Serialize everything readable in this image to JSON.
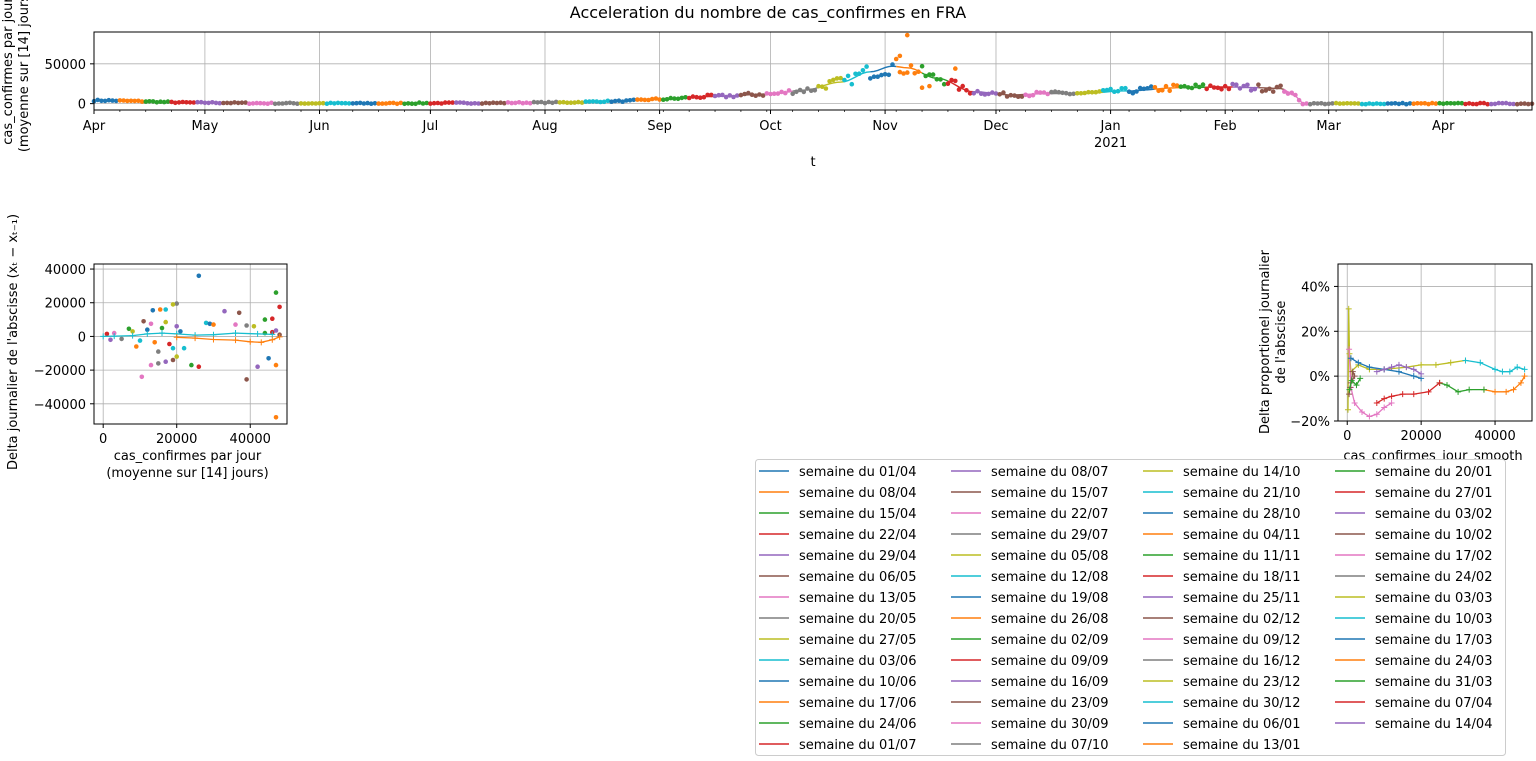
{
  "figure": {
    "title": "Acceleration du nombre de cas_confirmes en FRA"
  },
  "colors": [
    "#1f77b4",
    "#ff7f0e",
    "#2ca02c",
    "#d62728",
    "#9467bd",
    "#8c564b",
    "#e377c2",
    "#7f7f7f",
    "#bcbd22",
    "#17becf"
  ],
  "chart_data": [
    {
      "id": "timeline",
      "type": "scatter",
      "xlabel": "t",
      "ylabel_lines": [
        "cas_confirmes par jour",
        "(moyenne sur [14] jours)"
      ],
      "x_range": [
        "2020-04-01",
        "2021-04-25"
      ],
      "ylim": [
        -8000,
        90000
      ],
      "yticks": [
        0,
        50000
      ],
      "ytick_labels": [
        "0",
        "50000"
      ],
      "xtick_labels": [
        "Apr",
        "May",
        "Jun",
        "Jul",
        "Aug",
        "Sep",
        "Oct",
        "Nov",
        "Dec",
        "Jan",
        "Feb",
        "Mar",
        "Apr"
      ],
      "xtick_dates": [
        "2020-04-01",
        "2020-05-01",
        "2020-06-01",
        "2020-07-01",
        "2020-08-01",
        "2020-09-01",
        "2020-10-01",
        "2020-11-01",
        "2020-12-01",
        "2021-01-01",
        "2021-02-01",
        "2021-03-01",
        "2021-04-01"
      ],
      "year_label": "2021",
      "grid": true,
      "note": "daily values as points, 14-day moving average as line, coloured by week",
      "smooth_anchors": [
        [
          "2020-04-01",
          4000
        ],
        [
          "2020-05-01",
          1200
        ],
        [
          "2020-05-20",
          400
        ],
        [
          "2020-06-15",
          300
        ],
        [
          "2020-07-15",
          800
        ],
        [
          "2020-08-05",
          1500
        ],
        [
          "2020-08-20",
          3000
        ],
        [
          "2020-09-01",
          5500
        ],
        [
          "2020-09-15",
          9000
        ],
        [
          "2020-10-01",
          12000
        ],
        [
          "2020-10-10",
          17000
        ],
        [
          "2020-10-20",
          27000
        ],
        [
          "2020-10-28",
          40000
        ],
        [
          "2020-11-03",
          47000
        ],
        [
          "2020-11-07",
          45000
        ],
        [
          "2020-11-15",
          32000
        ],
        [
          "2020-11-25",
          15000
        ],
        [
          "2020-12-05",
          11000
        ],
        [
          "2020-12-15",
          12500
        ],
        [
          "2020-12-25",
          13000
        ],
        [
          "2021-01-05",
          16000
        ],
        [
          "2021-01-20",
          20000
        ],
        [
          "2021-02-01",
          21000
        ],
        [
          "2021-02-10",
          20000
        ],
        [
          "2021-02-16",
          19000
        ],
        [
          "2021-02-20",
          10000
        ],
        [
          "2021-02-22",
          0
        ],
        [
          "2021-04-25",
          0
        ]
      ],
      "outliers": [
        [
          "2020-11-07",
          86000
        ],
        [
          "2020-11-05",
          60000
        ],
        [
          "2020-11-11",
          20000
        ],
        [
          "2020-11-13",
          22000
        ],
        [
          "2020-11-20",
          44000
        ]
      ]
    },
    {
      "id": "phase-delta",
      "type": "scatter",
      "xlabel_lines": [
        "cas_confirmes par jour",
        "(moyenne sur [14] jours)"
      ],
      "ylabel": "Delta journalier de l'abscisse (x_t - x_{t-1})",
      "xlim": [
        -2500,
        50000
      ],
      "ylim": [
        -52000,
        43000
      ],
      "xticks": [
        0,
        20000,
        40000
      ],
      "xtick_labels": [
        "0",
        "20000",
        "40000"
      ],
      "yticks": [
        -40000,
        -20000,
        0,
        20000,
        40000
      ],
      "ytick_labels": [
        "−40000",
        "−20000",
        "0",
        "20000",
        "40000"
      ],
      "grid": true,
      "points": [
        [
          26000,
          36000
        ],
        [
          47000,
          -48000
        ],
        [
          47000,
          26000
        ],
        [
          48000,
          17500
        ],
        [
          42000,
          -18000
        ],
        [
          39000,
          -25500
        ],
        [
          10500,
          -24000
        ],
        [
          20000,
          19500
        ],
        [
          19000,
          19000
        ],
        [
          17000,
          16000
        ],
        [
          13500,
          15500
        ],
        [
          15500,
          16000
        ],
        [
          44000,
          10000
        ],
        [
          46000,
          10500
        ],
        [
          33000,
          15000
        ],
        [
          37000,
          14000
        ],
        [
          36000,
          7000
        ],
        [
          39000,
          6500
        ],
        [
          41000,
          6000
        ],
        [
          28000,
          8000
        ],
        [
          29000,
          7500
        ],
        [
          30000,
          7000
        ],
        [
          24000,
          -17000
        ],
        [
          26000,
          -18000
        ],
        [
          17000,
          -15000
        ],
        [
          19000,
          -14000
        ],
        [
          13000,
          -17000
        ],
        [
          15000,
          -16000
        ],
        [
          20000,
          -12000
        ],
        [
          22000,
          -7000
        ],
        [
          45000,
          -13000
        ],
        [
          47000,
          -17000
        ],
        [
          44000,
          2000
        ],
        [
          46000,
          2500
        ],
        [
          47000,
          3500
        ],
        [
          48000,
          1000
        ],
        [
          3000,
          2000
        ],
        [
          5000,
          -1500
        ],
        [
          8000,
          3000
        ],
        [
          10000,
          -2500
        ],
        [
          12000,
          4000
        ],
        [
          14000,
          -3500
        ],
        [
          16000,
          5000
        ],
        [
          18000,
          -4500
        ],
        [
          20000,
          6000
        ],
        [
          11000,
          9000
        ],
        [
          13000,
          7500
        ],
        [
          15000,
          -9000
        ],
        [
          17000,
          8500
        ],
        [
          19000,
          -7000
        ],
        [
          21000,
          3000
        ],
        [
          9000,
          -6000
        ],
        [
          7000,
          4500
        ],
        [
          1000,
          1500
        ],
        [
          2000,
          -2000
        ]
      ],
      "smooth_lines": [
        [
          [
            0,
            0
          ],
          [
            3000,
            200
          ],
          [
            8000,
            500
          ],
          [
            12000,
            1500
          ],
          [
            16000,
            2000
          ],
          [
            20000,
            1500
          ],
          [
            25000,
            800
          ],
          [
            30000,
            1000
          ],
          [
            36000,
            2000
          ],
          [
            42000,
            1500
          ],
          [
            46000,
            1200
          ]
        ],
        [
          [
            20000,
            -500
          ],
          [
            25000,
            -1000
          ],
          [
            30000,
            -1800
          ],
          [
            36000,
            -2200
          ],
          [
            40000,
            -3200
          ],
          [
            43000,
            -3500
          ],
          [
            46000,
            -2000
          ],
          [
            48000,
            -300
          ]
        ]
      ]
    },
    {
      "id": "phase-rel",
      "type": "scatter",
      "xlabel": "cas_confirmes_jour_smooth",
      "ylabel_lines": [
        "Delta proportionel journalier",
        "de l'abscisse"
      ],
      "xlim": [
        -2500,
        50000
      ],
      "ylim": [
        -0.2,
        0.5
      ],
      "xticks": [
        0,
        20000,
        40000
      ],
      "xtick_labels": [
        "0",
        "20000",
        "40000"
      ],
      "yticks": [
        -0.2,
        0,
        0.2,
        0.4
      ],
      "ytick_labels": [
        "−20%",
        "0%",
        "20%",
        "40%"
      ],
      "grid": true,
      "lines": [
        {
          "color": "#bcbd22",
          "pts": [
            [
              200,
              -0.15
            ],
            [
              400,
              0.3
            ],
            [
              600,
              0.1
            ],
            [
              1000,
              0.02
            ],
            [
              3000,
              0.05
            ],
            [
              6000,
              0.03
            ],
            [
              10000,
              0.03
            ],
            [
              16000,
              0.04
            ],
            [
              20000,
              0.05
            ],
            [
              24000,
              0.05
            ],
            [
              28000,
              0.06
            ],
            [
              32000,
              0.07
            ]
          ]
        },
        {
          "color": "#17becf",
          "pts": [
            [
              32000,
              0.07
            ],
            [
              36000,
              0.06
            ],
            [
              40000,
              0.03
            ],
            [
              42000,
              0.02
            ],
            [
              44000,
              0.02
            ],
            [
              46000,
              0.04
            ],
            [
              48000,
              0.03
            ]
          ]
        },
        {
          "color": "#ff7f0e",
          "pts": [
            [
              48000,
              0.0
            ],
            [
              47000,
              -0.03
            ],
            [
              45000,
              -0.06
            ],
            [
              43000,
              -0.07
            ],
            [
              40000,
              -0.07
            ],
            [
              37000,
              -0.06
            ]
          ]
        },
        {
          "color": "#2ca02c",
          "pts": [
            [
              37000,
              -0.06
            ],
            [
              33000,
              -0.06
            ],
            [
              30000,
              -0.07
            ],
            [
              27000,
              -0.04
            ],
            [
              25000,
              -0.03
            ]
          ]
        },
        {
          "color": "#d62728",
          "pts": [
            [
              25000,
              -0.03
            ],
            [
              22000,
              -0.07
            ],
            [
              18000,
              -0.08
            ],
            [
              15000,
              -0.08
            ],
            [
              12000,
              -0.09
            ],
            [
              10000,
              -0.1
            ],
            [
              8000,
              -0.12
            ]
          ]
        },
        {
          "color": "#e377c2",
          "pts": [
            [
              500,
              0.12
            ],
            [
              1000,
              -0.05
            ],
            [
              2000,
              -0.12
            ],
            [
              4000,
              -0.16
            ],
            [
              6000,
              -0.18
            ],
            [
              8000,
              -0.17
            ],
            [
              10000,
              -0.14
            ],
            [
              12000,
              -0.12
            ]
          ]
        },
        {
          "color": "#1f77b4",
          "pts": [
            [
              1000,
              0.08
            ],
            [
              3000,
              0.06
            ],
            [
              6000,
              0.04
            ],
            [
              10000,
              0.03
            ],
            [
              14000,
              0.02
            ],
            [
              18000,
              0.0
            ],
            [
              20000,
              -0.01
            ]
          ]
        },
        {
          "color": "#9467bd",
          "pts": [
            [
              20000,
              0.01
            ],
            [
              18000,
              0.03
            ],
            [
              16000,
              0.04
            ],
            [
              14000,
              0.05
            ],
            [
              12000,
              0.04
            ],
            [
              10000,
              0.03
            ],
            [
              8000,
              0.02
            ]
          ]
        },
        {
          "color": "#8c564b",
          "pts": [
            [
              500,
              -0.08
            ],
            [
              1000,
              -0.03
            ],
            [
              2000,
              0.0
            ],
            [
              1500,
              0.02
            ],
            [
              800,
              -0.05
            ]
          ]
        },
        {
          "color": "#2ca02c",
          "pts": [
            [
              600,
              -0.06
            ],
            [
              1200,
              -0.02
            ],
            [
              2500,
              -0.04
            ],
            [
              3500,
              -0.01
            ]
          ]
        }
      ]
    }
  ],
  "legend": {
    "columns": [
      [
        "semaine du 01/04",
        "semaine du 08/04",
        "semaine du 15/04",
        "semaine du 22/04",
        "semaine du 29/04",
        "semaine du 06/05",
        "semaine du 13/05",
        "semaine du 20/05",
        "semaine du 27/05",
        "semaine du 03/06",
        "semaine du 10/06",
        "semaine du 17/06",
        "semaine du 24/06",
        "semaine du 01/07"
      ],
      [
        "semaine du 08/07",
        "semaine du 15/07",
        "semaine du 22/07",
        "semaine du 29/07",
        "semaine du 05/08",
        "semaine du 12/08",
        "semaine du 19/08",
        "semaine du 26/08",
        "semaine du 02/09",
        "semaine du 09/09",
        "semaine du 16/09",
        "semaine du 23/09",
        "semaine du 30/09",
        "semaine du 07/10"
      ],
      [
        "semaine du 14/10",
        "semaine du 21/10",
        "semaine du 28/10",
        "semaine du 04/11",
        "semaine du 11/11",
        "semaine du 18/11",
        "semaine du 25/11",
        "semaine du 02/12",
        "semaine du 09/12",
        "semaine du 16/12",
        "semaine du 23/12",
        "semaine du 30/12",
        "semaine du 06/01",
        "semaine du 13/01"
      ],
      [
        "semaine du 20/01",
        "semaine du 27/01",
        "semaine du 03/02",
        "semaine du 10/02",
        "semaine du 17/02",
        "semaine du 24/02",
        "semaine du 03/03",
        "semaine du 10/03",
        "semaine du 17/03",
        "semaine du 24/03",
        "semaine du 31/03",
        "semaine du 07/04",
        "semaine du 14/04"
      ]
    ]
  }
}
